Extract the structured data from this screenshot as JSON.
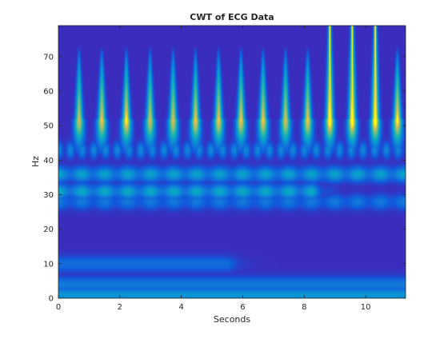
{
  "chart_data": {
    "type": "heatmap",
    "title": "CWT of ECG Data",
    "xlabel": "Seconds",
    "ylabel": "Hz",
    "xlim": [
      0,
      11.3
    ],
    "ylim": [
      0,
      79
    ],
    "xticks": [
      0,
      2,
      4,
      6,
      8,
      10
    ],
    "yticks": [
      0,
      10,
      20,
      30,
      40,
      50,
      60,
      70
    ],
    "colormap": "parula",
    "grid": false,
    "background_level": 0.12,
    "beat_times_s": [
      0.66,
      1.4,
      2.2,
      2.97,
      3.72,
      4.45,
      5.2,
      5.93,
      6.65,
      7.38,
      8.1,
      8.82,
      9.55,
      10.3,
      11.02
    ],
    "beat_peak_intensity": [
      0.8,
      0.85,
      0.9,
      0.8,
      0.82,
      0.85,
      0.85,
      0.85,
      0.85,
      0.82,
      0.85,
      0.95,
      0.95,
      0.95,
      0.9
    ],
    "beat_peak_frequency_hz": 52,
    "beats_reaching_top_edge_s": [
      8.82,
      9.55,
      10.3
    ],
    "bands": [
      {
        "freq_hz": 36,
        "intensity": 0.42,
        "time_range_s": [
          0,
          11.3
        ]
      },
      {
        "freq_hz": 31,
        "intensity": 0.45,
        "time_range_s": [
          0,
          8.3
        ]
      },
      {
        "freq_hz": 28,
        "intensity": 0.25,
        "time_range_s": [
          0,
          11.3
        ]
      },
      {
        "freq_hz": 10,
        "intensity": 0.2,
        "time_range_s": [
          0,
          5.5
        ]
      },
      {
        "freq_hz": 4,
        "intensity": 0.25,
        "time_range_s": [
          0,
          11.3
        ]
      },
      {
        "freq_hz": 1,
        "intensity": 0.35,
        "time_range_s": [
          0,
          11.3
        ]
      }
    ]
  }
}
